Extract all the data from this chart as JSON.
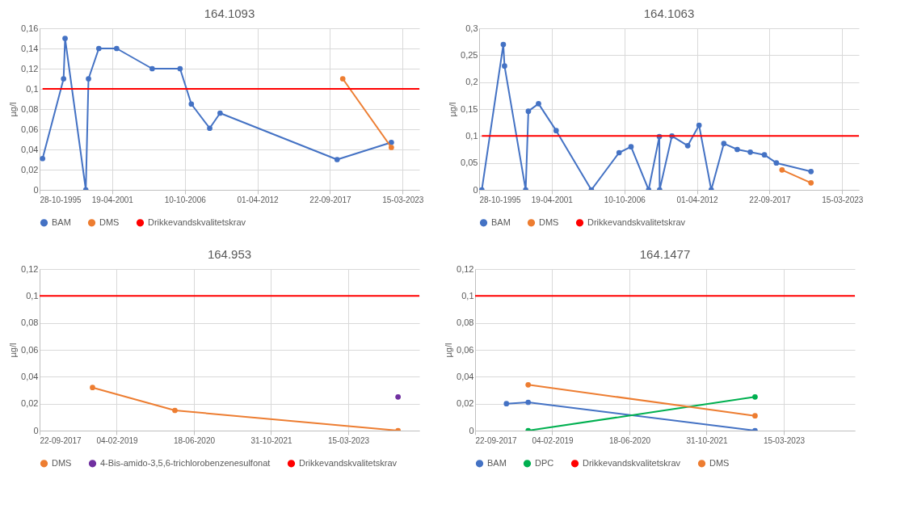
{
  "chart_data": [
    {
      "type": "line",
      "title": "164.1093",
      "ylabel": "µg/l",
      "grid": true,
      "legend": "bottom",
      "marker": "circle",
      "xlim": [
        "1995-10-28",
        "2024-06-18"
      ],
      "xticks": [
        {
          "value": "1995-10-28",
          "label": "28-10-1995"
        },
        {
          "value": "2001-04-19",
          "label": "19-04-2001"
        },
        {
          "value": "2006-10-10",
          "label": "10-10-2006"
        },
        {
          "value": "2012-04-01",
          "label": "01-04-2012"
        },
        {
          "value": "2017-09-22",
          "label": "22-09-2017"
        },
        {
          "value": "2023-03-15",
          "label": "15-03-2023"
        }
      ],
      "ylim": [
        0,
        0.16
      ],
      "yticks": [
        0,
        {
          "value": 0.02,
          "label": "0,02"
        },
        {
          "value": 0.04,
          "label": "0,04"
        },
        {
          "value": 0.06,
          "label": "0,06"
        },
        {
          "value": 0.08,
          "label": "0,08"
        },
        {
          "value": 0.1,
          "label": "0,1"
        },
        {
          "value": 0.12,
          "label": "0,12"
        },
        {
          "value": 0.14,
          "label": "0,14"
        },
        {
          "value": 0.16,
          "label": "0,16"
        }
      ],
      "series": [
        {
          "name": "BAM",
          "color": "#4472c4",
          "x": [
            "1996-01-18",
            "1997-08-19",
            "1997-09-29",
            "1999-04-23",
            "1999-07-06",
            "2000-04-16",
            "2001-08-19",
            "2004-04-25",
            "2006-06-01",
            "2007-04-08",
            "2008-08-26",
            "2009-06-08",
            "2018-04-06",
            "2022-05-09"
          ],
          "values": [
            0.031,
            0.11,
            0.15,
            0,
            0.11,
            0.14,
            0.14,
            0.12,
            0.12,
            0.085,
            0.061,
            0.076,
            0.03,
            0.047
          ]
        },
        {
          "name": "DMS",
          "color": "#ed7d31",
          "x": [
            "2018-09-08",
            "2022-05-09"
          ],
          "values": [
            0.11,
            0.042
          ]
        },
        {
          "name": "Drikkevandskvalitetskrav",
          "color": "#ff0000",
          "marker": "none",
          "x": [
            "1996-01-18",
            "2024-06-18"
          ],
          "values": [
            0.1,
            0.1
          ]
        }
      ]
    },
    {
      "type": "line",
      "title": "164.1063",
      "ylabel": "µg/l",
      "grid": true,
      "legend": "bottom",
      "marker": "circle",
      "xlim": [
        "1995-10-28",
        "2024-06-18"
      ],
      "xticks": [
        {
          "value": "1995-10-28",
          "label": "28-10-1995"
        },
        {
          "value": "2001-04-19",
          "label": "19-04-2001"
        },
        {
          "value": "2006-10-10",
          "label": "10-10-2006"
        },
        {
          "value": "2012-04-01",
          "label": "01-04-2012"
        },
        {
          "value": "2017-09-22",
          "label": "22-09-2017"
        },
        {
          "value": "2023-03-15",
          "label": "15-03-2023"
        }
      ],
      "ylim": [
        0,
        0.3
      ],
      "yticks": [
        0,
        {
          "value": 0.05,
          "label": "0,05"
        },
        {
          "value": 0.1,
          "label": "0,1"
        },
        {
          "value": 0.15,
          "label": "0,15"
        },
        {
          "value": 0.2,
          "label": "0,2"
        },
        {
          "value": 0.25,
          "label": "0,25"
        },
        {
          "value": 0.3,
          "label": "0,3"
        }
      ],
      "series": [
        {
          "name": "BAM",
          "color": "#4472c4",
          "x": [
            "1996-01-10",
            "1997-08-24",
            "1997-09-26",
            "1999-05-02",
            "1999-07-15",
            "2000-04-20",
            "2001-08-18",
            "2004-04-14",
            "2006-05-18",
            "2007-04-12",
            "2008-08-09",
            "2009-05-31",
            "2009-06-08",
            "2010-05-12",
            "2011-07-22",
            "2012-05-29",
            "2013-04-30",
            "2014-04-11",
            "2015-04-16",
            "2016-04-10",
            "2017-05-03",
            "2018-03-28",
            "2020-11-06"
          ],
          "values": [
            0,
            0.27,
            0.23,
            0,
            0.146,
            0.16,
            0.11,
            0,
            0.069,
            0.08,
            0,
            0.099,
            0,
            0.1,
            0.082,
            0.12,
            0,
            0.086,
            0.075,
            0.07,
            0.065,
            0.05,
            0.034
          ]
        },
        {
          "name": "DMS",
          "color": "#ed7d31",
          "x": [
            "2018-08-31",
            "2020-11-06"
          ],
          "values": [
            0.037,
            0.013
          ]
        },
        {
          "name": "Drikkevandskvalitetskrav",
          "color": "#ff0000",
          "marker": "none",
          "x": [
            "1996-01-10",
            "2024-06-18"
          ],
          "values": [
            0.1,
            0.1
          ]
        }
      ]
    },
    {
      "type": "line",
      "title": "164.953",
      "ylabel": "µg/l",
      "grid": true,
      "legend": "bottom",
      "marker": "circle",
      "xlim": [
        "2017-09-22",
        "2024-06-18"
      ],
      "xticks": [
        {
          "value": "2017-09-22",
          "label": "22-09-2017"
        },
        {
          "value": "2019-02-04",
          "label": "04-02-2019"
        },
        {
          "value": "2020-06-18",
          "label": "18-06-2020"
        },
        {
          "value": "2021-10-31",
          "label": "31-10-2021"
        },
        {
          "value": "2023-03-15",
          "label": "15-03-2023"
        }
      ],
      "ylim": [
        0,
        0.12
      ],
      "yticks": [
        0,
        {
          "value": 0.02,
          "label": "0,02"
        },
        {
          "value": 0.04,
          "label": "0,04"
        },
        {
          "value": 0.06,
          "label": "0,06"
        },
        {
          "value": 0.08,
          "label": "0,08"
        },
        {
          "value": 0.1,
          "label": "0,1"
        },
        {
          "value": 0.12,
          "label": "0,12"
        }
      ],
      "series": [
        {
          "name": "DMS",
          "color": "#ed7d31",
          "x": [
            "2018-08-31",
            "2020-02-16",
            "2024-02-01"
          ],
          "values": [
            0.032,
            0.015,
            0
          ]
        },
        {
          "name": "4-Bis-amido-3,5,6-trichlorobenzenesulfonat",
          "color": "#7030a0",
          "x": [
            "2024-02-01"
          ],
          "values": [
            0.025
          ]
        },
        {
          "name": "Drikkevandskvalitetskrav",
          "color": "#ff0000",
          "marker": "none",
          "x": [
            "2017-09-22",
            "2024-06-18"
          ],
          "values": [
            0.1,
            0.1
          ]
        }
      ]
    },
    {
      "type": "line",
      "title": "164.1477",
      "ylabel": "µg/l",
      "grid": true,
      "legend": "bottom",
      "marker": "circle",
      "xlim": [
        "2017-09-22",
        "2024-06-18"
      ],
      "xticks": [
        {
          "value": "2017-09-22",
          "label": "22-09-2017"
        },
        {
          "value": "2019-02-04",
          "label": "04-02-2019"
        },
        {
          "value": "2020-06-18",
          "label": "18-06-2020"
        },
        {
          "value": "2021-10-31",
          "label": "31-10-2021"
        },
        {
          "value": "2023-03-15",
          "label": "15-03-2023"
        }
      ],
      "ylim": [
        0,
        0.12
      ],
      "yticks": [
        0,
        {
          "value": 0.02,
          "label": "0,02"
        },
        {
          "value": 0.04,
          "label": "0,04"
        },
        {
          "value": 0.06,
          "label": "0,06"
        },
        {
          "value": 0.08,
          "label": "0,08"
        },
        {
          "value": 0.1,
          "label": "0,1"
        },
        {
          "value": 0.12,
          "label": "0,12"
        }
      ],
      "series": [
        {
          "name": "BAM",
          "color": "#4472c4",
          "x": [
            "2018-04-13",
            "2018-09-01",
            "2022-09-10"
          ],
          "values": [
            0.02,
            0.021,
            0
          ]
        },
        {
          "name": "DPC",
          "color": "#00b050",
          "x": [
            "2018-09-01",
            "2022-09-10"
          ],
          "values": [
            0,
            0.025
          ]
        },
        {
          "name": "Drikkevandskvalitetskrav",
          "color": "#ff0000",
          "marker": "none",
          "x": [
            "2017-09-22",
            "2024-06-18"
          ],
          "values": [
            0.1,
            0.1
          ]
        },
        {
          "name": "DMS",
          "color": "#ed7d31",
          "x": [
            "2018-09-01",
            "2022-09-10"
          ],
          "values": [
            0.034,
            0.011
          ]
        }
      ]
    }
  ]
}
